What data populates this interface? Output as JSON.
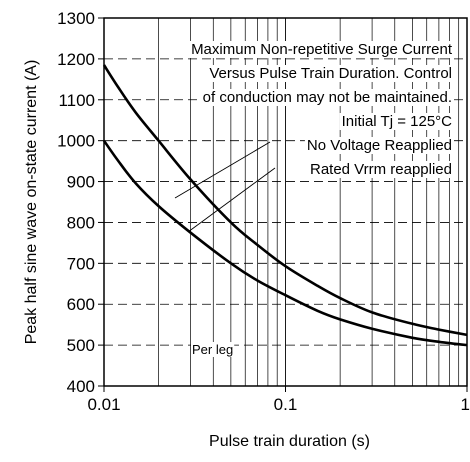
{
  "chart_data": {
    "type": "line",
    "xscale": "log",
    "xlim": [
      0.01,
      1
    ],
    "ylim": [
      400,
      1300
    ],
    "xlabel": "Pulse train duration (s)",
    "ylabel": "Peak half sine wave on-state current (A)",
    "x_ticks": [
      "0.01",
      "0.1",
      "1"
    ],
    "y_ticks": [
      "400",
      "500",
      "600",
      "700",
      "800",
      "900",
      "1000",
      "1100",
      "1200",
      "1300"
    ],
    "grid": true,
    "annotation_lines": [
      "Maximum Non-repetitive Surge Current",
      "Versus Pulse Train Duration. Control",
      "of conduction may not be maintained.",
      "Initial Tj = 125°C"
    ],
    "series": [
      {
        "name": "No Voltage Reapplied",
        "x": [
          0.01,
          0.012,
          0.015,
          0.02,
          0.03,
          0.05,
          0.07,
          0.1,
          0.15,
          0.2,
          0.3,
          0.5,
          0.7,
          1.0
        ],
        "y": [
          1185,
          1130,
          1068,
          1000,
          905,
          800,
          745,
          693,
          645,
          615,
          580,
          552,
          538,
          525
        ]
      },
      {
        "name": "Rated Vrrm reapplied",
        "x": [
          0.01,
          0.012,
          0.015,
          0.02,
          0.03,
          0.05,
          0.07,
          0.1,
          0.15,
          0.2,
          0.3,
          0.5,
          0.7,
          1.0
        ],
        "y": [
          1000,
          950,
          895,
          840,
          775,
          700,
          658,
          622,
          584,
          563,
          540,
          518,
          508,
          500
        ]
      }
    ],
    "labels": {
      "per_leg": "Per leg"
    }
  }
}
